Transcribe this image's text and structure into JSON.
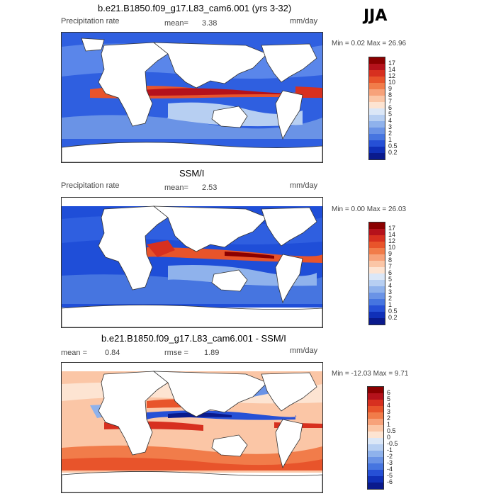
{
  "season": "JJA",
  "panels": [
    {
      "id": "model",
      "title": "b.e21.B1850.f09_g17.L83_cam6.001 (yrs 3-32)",
      "variable": "Precipitation rate",
      "mean_label": "mean=",
      "mean_value": "3.38",
      "units": "mm/day",
      "min_max": "Min =    0.02 Max =   26.96"
    },
    {
      "id": "obs",
      "title": "SSM/I",
      "variable": "Precipitation rate",
      "mean_label": "mean=",
      "mean_value": "2.53",
      "units": "mm/day",
      "min_max": "Min =    0.00 Max =   26.03"
    },
    {
      "id": "diff",
      "title": "b.e21.B1850.f09_g17.L83_cam6.001 - SSM/I",
      "mean_label": "mean =",
      "mean_value": "0.84",
      "rmse_label": "rmse =",
      "rmse_value": "1.89",
      "units": "mm/day",
      "min_max": "Min = -12.03 Max =    9.71"
    }
  ],
  "colorbars": {
    "precip": {
      "labels": [
        "17",
        "14",
        "12",
        "10",
        "9",
        "8",
        "7",
        "6",
        "5",
        "4",
        "3",
        "2",
        "1",
        "0.5",
        "0.2"
      ],
      "colors": [
        "#8b0000",
        "#b5121b",
        "#d7301f",
        "#e8542b",
        "#f17c4a",
        "#f7a27a",
        "#fbc6a6",
        "#fde4d2",
        "#dbe7f7",
        "#b7cff2",
        "#8fb2ec",
        "#6a93e6",
        "#4675e0",
        "#2650d6",
        "#1030b8",
        "#0a1a8c"
      ]
    },
    "diff": {
      "labels": [
        "6",
        "5",
        "4",
        "3",
        "2",
        "1",
        "0.5",
        "0",
        "-0.5",
        "-1",
        "-2",
        "-3",
        "-4",
        "-5",
        "-6"
      ],
      "colors": [
        "#8b0000",
        "#b5121b",
        "#d7301f",
        "#e8542b",
        "#f17c4a",
        "#f7a27a",
        "#fbc6a6",
        "#fde4d2",
        "#dbe7f7",
        "#b7cff2",
        "#8fb2ec",
        "#6a93e6",
        "#4675e0",
        "#2650d6",
        "#1030b8",
        "#0a1a8c"
      ]
    }
  }
}
